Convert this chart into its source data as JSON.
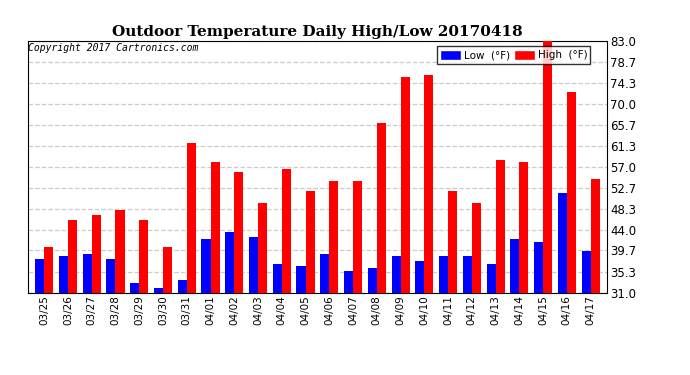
{
  "title": "Outdoor Temperature Daily High/Low 20170418",
  "copyright": "Copyright 2017 Cartronics.com",
  "dates": [
    "03/25",
    "03/26",
    "03/27",
    "03/28",
    "03/29",
    "03/30",
    "03/31",
    "04/01",
    "04/02",
    "04/03",
    "04/04",
    "04/05",
    "04/06",
    "04/07",
    "04/08",
    "04/09",
    "04/10",
    "04/11",
    "04/12",
    "04/13",
    "04/14",
    "04/15",
    "04/16",
    "04/17"
  ],
  "low": [
    38.0,
    38.5,
    39.0,
    38.0,
    33.0,
    32.0,
    33.5,
    42.0,
    43.5,
    42.5,
    37.0,
    36.5,
    39.0,
    35.5,
    36.0,
    38.5,
    37.5,
    38.5,
    38.5,
    37.0,
    42.0,
    41.5,
    51.5,
    39.5
  ],
  "high": [
    40.5,
    46.0,
    47.0,
    48.0,
    46.0,
    40.5,
    62.0,
    58.0,
    56.0,
    49.5,
    56.5,
    52.0,
    54.0,
    54.0,
    66.0,
    75.5,
    76.0,
    52.0,
    49.5,
    58.5,
    58.0,
    83.0,
    72.5,
    54.5
  ],
  "ylim": [
    31.0,
    83.0
  ],
  "yticks": [
    31.0,
    35.3,
    39.7,
    44.0,
    48.3,
    52.7,
    57.0,
    61.3,
    65.7,
    70.0,
    74.3,
    78.7,
    83.0
  ],
  "low_color": "#0000ff",
  "high_color": "#ff0000",
  "bg_color": "#ffffff",
  "grid_color": "#cccccc",
  "legend_low_label": "Low  (°F)",
  "legend_high_label": "High  (°F)"
}
